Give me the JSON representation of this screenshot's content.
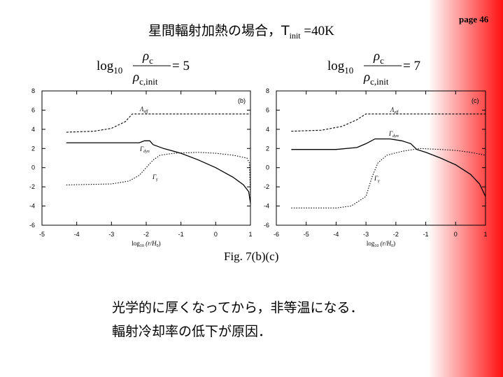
{
  "page": "page 46",
  "title": {
    "text": "星間輻射加熱の場合，T",
    "sub": "init",
    "rest": " =40K"
  },
  "formulas": [
    {
      "log": "log",
      "base": "10",
      "num": "ρ",
      "num_sub": "c",
      "den": "ρ",
      "den_sub": "c,init",
      "rhs": "= 5"
    },
    {
      "log": "log",
      "base": "10",
      "num": "ρ",
      "num_sub": "c",
      "den": "ρ",
      "den_sub": "c,init",
      "rhs": "= 7"
    }
  ],
  "caption": "Fig. 7(b)(c)",
  "body": [
    "光学的に厚くなってから，非等温になる．",
    "輻射冷却率の低下が原因．"
  ],
  "chart_data": [
    {
      "type": "line",
      "panel_label": "(b)",
      "xlabel_parts": [
        "log",
        "10",
        " (r/H",
        "0",
        ")"
      ],
      "xlim": [
        -5,
        1
      ],
      "xticks": [
        -5,
        -4,
        -3,
        -2,
        -1,
        0,
        1
      ],
      "ylim": [
        -6,
        8
      ],
      "yticks": [
        -6,
        -4,
        -2,
        0,
        2,
        4,
        6,
        8
      ],
      "series": [
        {
          "name": "Λ",
          "sub": "eff",
          "color": "#000000",
          "style": "dashed",
          "x": [
            -4.3,
            -3.5,
            -3,
            -2.6,
            -2.4,
            -2,
            1
          ],
          "values": [
            3.7,
            3.8,
            4.1,
            4.8,
            5.6,
            5.6,
            5.6
          ]
        },
        {
          "name": "Γ",
          "sub": "dyn",
          "color": "#000000",
          "style": "solid",
          "x": [
            -4.3,
            -2.2,
            -2.05,
            -1.9,
            -1.8,
            -1.5,
            -1,
            -0.5,
            0,
            0.5,
            0.8,
            0.95,
            1
          ],
          "values": [
            2.6,
            2.6,
            2.8,
            2.8,
            2.4,
            2.0,
            1.5,
            0.8,
            0,
            -1.0,
            -1.8,
            -2.5,
            -3.7
          ]
        },
        {
          "name": "Γ",
          "sub": "γ",
          "color": "#000000",
          "style": "dotted",
          "x": [
            -4.3,
            -3,
            -2.5,
            -2.2,
            -2,
            -1.8,
            -1.6,
            -1.2,
            -0.5,
            0,
            0.5,
            0.9,
            0.97,
            1
          ],
          "values": [
            -1.8,
            -1.7,
            -1.4,
            -0.8,
            0,
            0.8,
            1.3,
            1.5,
            1.6,
            1.5,
            1.3,
            1.0,
            0.5,
            -3
          ]
        }
      ]
    },
    {
      "type": "line",
      "panel_label": "(c)",
      "xlabel_parts": [
        "log",
        "10",
        " (r/H",
        "0",
        ")"
      ],
      "xlim": [
        -6,
        1
      ],
      "xticks": [
        -6,
        -5,
        -4,
        -3,
        -2,
        -1,
        0,
        1
      ],
      "ylim": [
        -6,
        8
      ],
      "yticks": [
        -6,
        -4,
        -2,
        0,
        2,
        4,
        6,
        8
      ],
      "series": [
        {
          "name": "Λ",
          "sub": "eff",
          "color": "#000000",
          "style": "dashed",
          "x": [
            -5.5,
            -4.5,
            -3.8,
            -3.3,
            -3,
            1
          ],
          "values": [
            3.8,
            3.9,
            4.3,
            5.0,
            5.6,
            5.6
          ]
        },
        {
          "name": "Γ",
          "sub": "dyn",
          "color": "#000000",
          "style": "solid",
          "x": [
            -5.5,
            -4,
            -3.3,
            -3,
            -2.7,
            -2.2,
            -1.8,
            -1.5,
            -1.3,
            -1,
            -0.5,
            0,
            0.5,
            0.8,
            1
          ],
          "values": [
            1.9,
            1.9,
            2.1,
            2.5,
            3.0,
            3.0,
            2.8,
            2.5,
            1.9,
            1.6,
            1.0,
            0.3,
            -0.7,
            -1.7,
            -3.0
          ]
        },
        {
          "name": "Γ",
          "sub": "γ",
          "color": "#000000",
          "style": "dotted",
          "x": [
            -5.5,
            -4,
            -3.5,
            -3,
            -2.8,
            -2.6,
            -2.3,
            -1.8,
            -1.2,
            -0.5,
            0,
            0.5,
            1
          ],
          "values": [
            -4.2,
            -4.2,
            -4.0,
            -3.0,
            -1.0,
            0.5,
            1.3,
            1.7,
            2.0,
            1.9,
            1.8,
            1.6,
            1.3
          ]
        }
      ]
    }
  ]
}
